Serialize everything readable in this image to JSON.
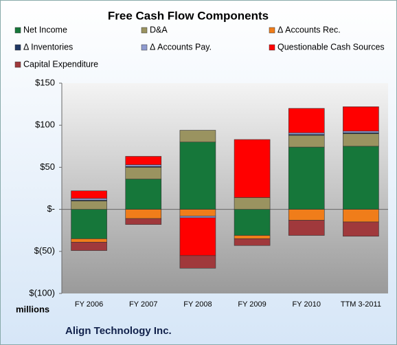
{
  "chart_data": {
    "type": "stacked_bar",
    "title": "Free Cash Flow Components",
    "categories": [
      "FY 2006",
      "FY 2007",
      "FY 2008",
      "FY 2009",
      "FY 2010",
      "TTM 3-2011"
    ],
    "series": [
      {
        "name": "Net Income",
        "color": "#16773a",
        "values": [
          -35,
          36,
          80,
          -31,
          74,
          75
        ]
      },
      {
        "name": "D&A",
        "color": "#9a9360",
        "values": [
          10,
          14,
          14,
          14,
          14,
          15
        ]
      },
      {
        "name": "Δ Accounts Rec.",
        "color": "#f07d1a",
        "values": [
          -4,
          -11,
          -8,
          -4,
          -13,
          -15
        ]
      },
      {
        "name": "Δ Inventories",
        "color": "#1f3864",
        "values": [
          1,
          1,
          0,
          0,
          1,
          1
        ]
      },
      {
        "name": "Δ Accounts Pay.",
        "color": "#8e9ad0",
        "values": [
          2,
          2,
          -2,
          0,
          2,
          2
        ]
      },
      {
        "name": "Questionable Cash Sources",
        "color": "#ff0000",
        "values": [
          9,
          10,
          -45,
          69,
          29,
          29
        ]
      },
      {
        "name": "Capital Expenditure",
        "color": "#a0393c",
        "values": [
          -10,
          -7,
          -15,
          -8,
          -18,
          -17
        ]
      }
    ],
    "ylim": [
      -100,
      150
    ],
    "yticks": [
      {
        "value": -100,
        "label": "$(100)"
      },
      {
        "value": -50,
        "label": "$(50)"
      },
      {
        "value": 0,
        "label": "$-"
      },
      {
        "value": 50,
        "label": "$50"
      },
      {
        "value": 100,
        "label": "$100"
      },
      {
        "value": 150,
        "label": "$150"
      }
    ],
    "unit_label": "millions",
    "footer": "Align Technology Inc."
  }
}
